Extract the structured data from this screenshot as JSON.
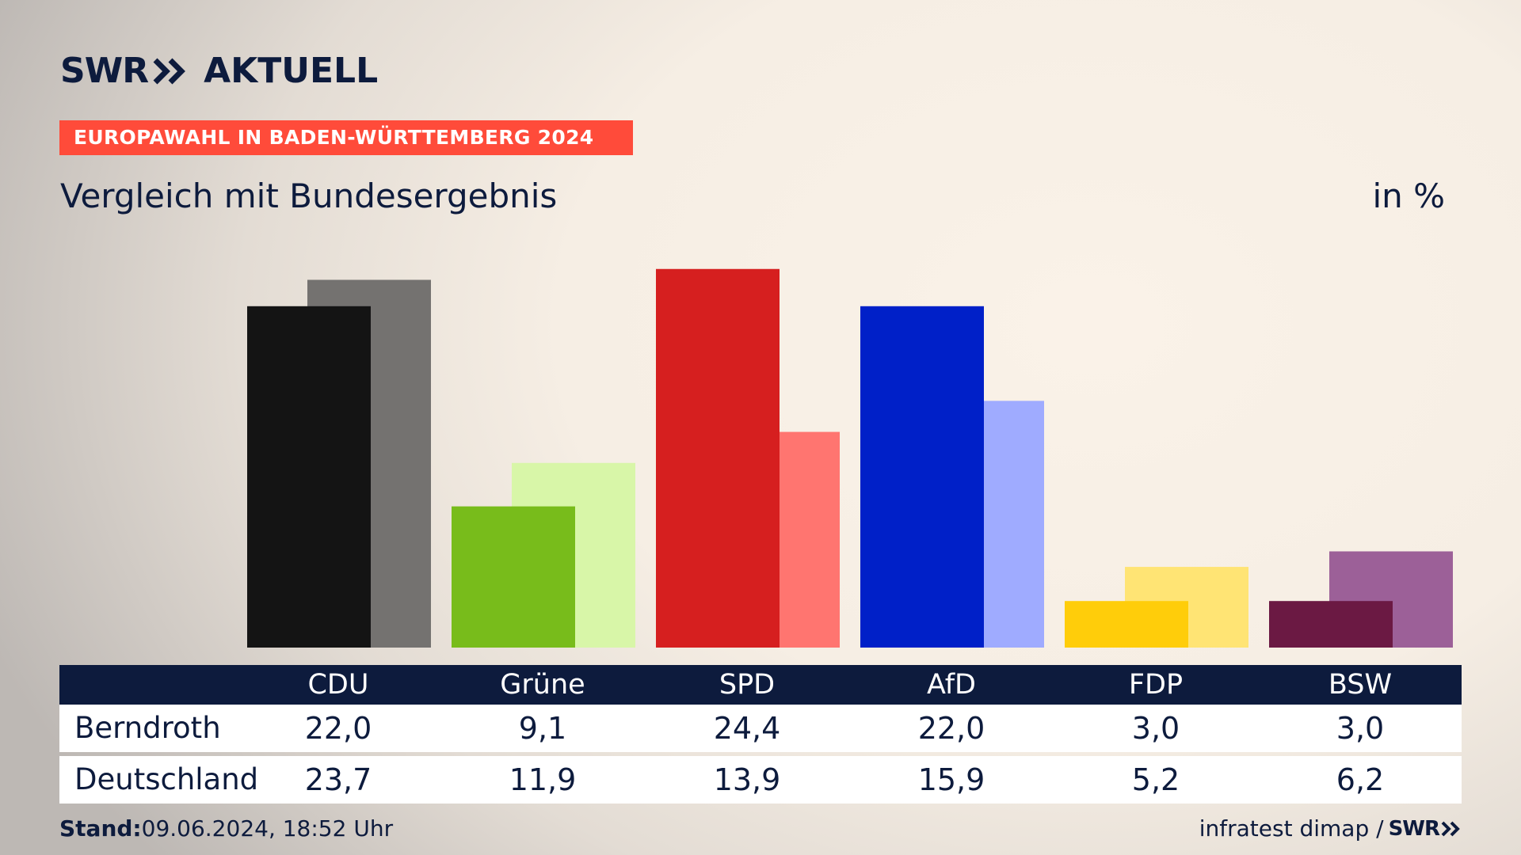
{
  "brand": {
    "name": "SWR",
    "product": "AKTUELL",
    "chevron_icon": "double-chevron-right-icon"
  },
  "banner": {
    "text": "EUROPAWAHL IN BADEN-WÜRTTEMBERG 2024"
  },
  "subtitle": "Vergleich mit Bundesergebnis",
  "unit": "in %",
  "chart_data": {
    "type": "bar",
    "categories": [
      "CDU",
      "Grüne",
      "SPD",
      "AfD",
      "FDP",
      "BSW"
    ],
    "series": [
      {
        "name": "Berndroth",
        "values": [
          22.0,
          9.1,
          24.4,
          22.0,
          3.0,
          3.0
        ],
        "colors": [
          "#141414",
          "#78bc1b",
          "#d61f1f",
          "#0020c8",
          "#ffcd0a",
          "#6b1943"
        ]
      },
      {
        "name": "Deutschland",
        "values": [
          23.7,
          11.9,
          13.9,
          15.9,
          5.2,
          6.2
        ],
        "colors": [
          "#747270",
          "#d8f6a8",
          "#ff7570",
          "#9fabff",
          "#ffe474",
          "#9c6098"
        ]
      }
    ],
    "ylim": [
      0,
      25
    ],
    "grid": false,
    "legend": "table-below"
  },
  "table": {
    "header": [
      "CDU",
      "Grüne",
      "SPD",
      "AfD",
      "FDP",
      "BSW"
    ],
    "rows": [
      {
        "label": "Berndroth",
        "values": [
          "22,0",
          "9,1",
          "24,4",
          "22,0",
          "3,0",
          "3,0"
        ]
      },
      {
        "label": "Deutschland",
        "values": [
          "23,7",
          "11,9",
          "13,9",
          "15,9",
          "5,2",
          "6,2"
        ]
      }
    ]
  },
  "footer": {
    "stand_label": "Stand:",
    "stand_value": "09.06.2024, 18:52 Uhr",
    "source": "infratest dimap /",
    "source_brand": "SWR"
  }
}
